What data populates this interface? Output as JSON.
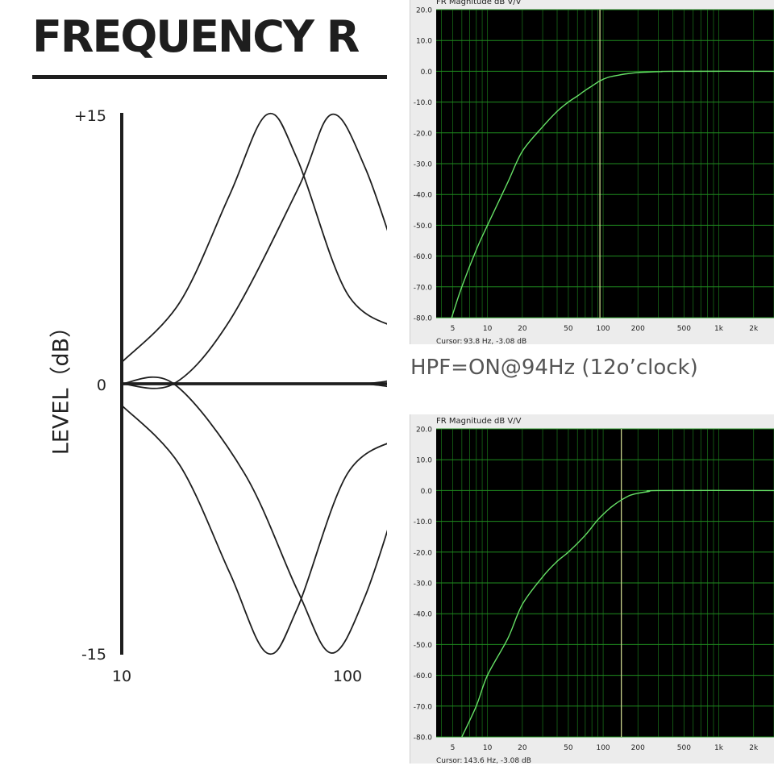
{
  "title": "FREQUENCY R",
  "hpf_caption": "HPF=ON@94Hz (12o’clock)",
  "eq_chart": {
    "type": "line",
    "ylabel": "LEVEL（dB）",
    "y_ticks": [
      "+15",
      "0",
      "-15"
    ],
    "x_ticks": [
      "10",
      "100"
    ],
    "ylim": [
      -15,
      15
    ],
    "xlim_visible": [
      10,
      175
    ],
    "log_x": true,
    "grid": false,
    "color": "#1e1e1e",
    "chart_data": {
      "type": "line",
      "x_scale": "log",
      "series": [
        {
          "points": [
            [
              10,
              1.2
            ],
            [
              18,
              4.5
            ],
            [
              30,
              10.5
            ],
            [
              44,
              15
            ],
            [
              60,
              12.5
            ],
            [
              100,
              5.0
            ],
            [
              175,
              3.0
            ]
          ]
        },
        {
          "points": [
            [
              10,
              0
            ],
            [
              17,
              0
            ],
            [
              30,
              3.5
            ],
            [
              60,
              10.8
            ],
            [
              85,
              15
            ],
            [
              120,
              12.0
            ],
            [
              175,
              6.0
            ]
          ]
        },
        {
          "points": [
            [
              10,
              0
            ],
            [
              17,
              0
            ],
            [
              35,
              -5.0
            ],
            [
              60,
              -11.5
            ],
            [
              85,
              -15
            ],
            [
              120,
              -11.8
            ],
            [
              175,
              -5.5
            ]
          ]
        },
        {
          "points": [
            [
              10,
              -1.2
            ],
            [
              18,
              -4.5
            ],
            [
              30,
              -10.5
            ],
            [
              44,
              -15
            ],
            [
              60,
              -12.5
            ],
            [
              100,
              -5.0
            ],
            [
              175,
              -3.0
            ]
          ]
        },
        {
          "points": [
            [
              10,
              0
            ],
            [
              175,
              0
            ]
          ]
        },
        {
          "points": [
            [
              120,
              0
            ],
            [
              150,
              0.15
            ],
            [
              175,
              0.45
            ]
          ]
        },
        {
          "points": [
            [
              120,
              0
            ],
            [
              150,
              -0.15
            ],
            [
              175,
              -0.45
            ]
          ]
        }
      ]
    }
  },
  "scope_top": {
    "header": "FR Magnitude dB V/V",
    "cursor_label": "Cursor:",
    "cursor_value": "93.8 Hz, -3.08 dB",
    "y_ticks": [
      "20.0",
      "10.0",
      "0.0",
      "-10.0",
      "-20.0",
      "-30.0",
      "-40.0",
      "-50.0",
      "-60.0",
      "-70.0",
      "-80.0"
    ],
    "x_ticks": [
      "5",
      "10",
      "20",
      "50",
      "100",
      "200",
      "500",
      "1k",
      "2k"
    ],
    "background": "#000000",
    "grid_color": "#1f8c1f",
    "trace_color": "#66e066",
    "cursor_color": "#c8d28c",
    "chart_data": {
      "type": "line",
      "x_scale": "log",
      "ylim": [
        -80,
        20
      ],
      "cursor_x": 93.8,
      "x": [
        4.9,
        6,
        8,
        10,
        15,
        20,
        30,
        40,
        50,
        60,
        70,
        80,
        94,
        110,
        130,
        160,
        200,
        260,
        320,
        400,
        3000
      ],
      "y": [
        -80,
        -70,
        -58,
        -50,
        -36,
        -26,
        -18,
        -13,
        -10,
        -8,
        -6.2,
        -4.8,
        -3.08,
        -2.0,
        -1.4,
        -0.8,
        -0.4,
        -0.2,
        -0.1,
        0,
        0
      ]
    }
  },
  "scope_bottom": {
    "header": "FR Magnitude dB V/V",
    "cursor_label": "Cursor:",
    "cursor_value": "143.6 Hz, -3.08 dB",
    "y_ticks": [
      "20.0",
      "10.0",
      "0.0",
      "-10.0",
      "-20.0",
      "-30.0",
      "-40.0",
      "-50.0",
      "-60.0",
      "-70.0",
      "-80.0"
    ],
    "x_ticks": [
      "5",
      "10",
      "20",
      "50",
      "100",
      "200",
      "500",
      "1k",
      "2k"
    ],
    "background": "#000000",
    "grid_color": "#1f8c1f",
    "trace_color": "#66e066",
    "cursor_color": "#c8d28c",
    "chart_data": {
      "type": "line",
      "x_scale": "log",
      "ylim": [
        -80,
        20
      ],
      "cursor_x": 143.6,
      "x": [
        6.0,
        8,
        10,
        15,
        20,
        30,
        40,
        50,
        70,
        90,
        110,
        125,
        143.6,
        170,
        200,
        250,
        300,
        3000
      ],
      "y": [
        -80,
        -70,
        -60,
        -48,
        -37,
        -28,
        -23,
        -20,
        -14.5,
        -9.5,
        -6.3,
        -4.6,
        -3.08,
        -1.6,
        -0.9,
        -0.3,
        0,
        0
      ]
    }
  }
}
